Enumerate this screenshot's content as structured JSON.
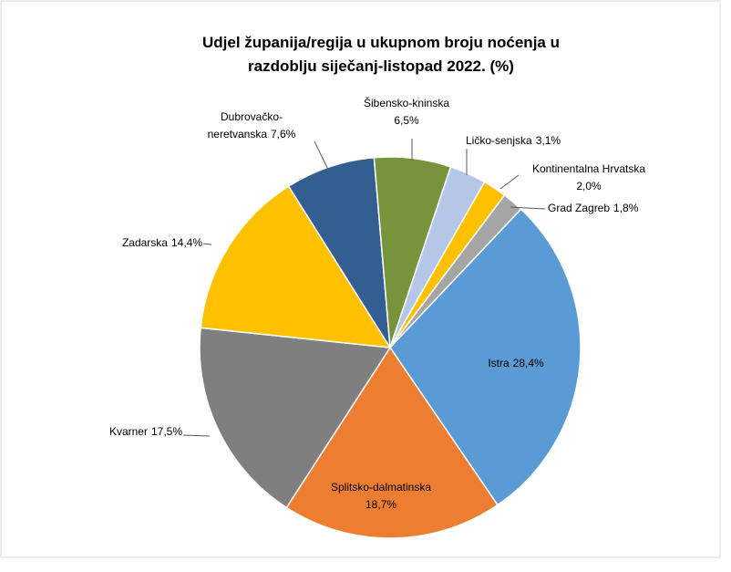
{
  "chart_data": {
    "type": "pie",
    "title": "Udjel županija/regija u ukupnom broju noćenja u razdoblju siječanj-listopad 2022. (%)",
    "categories": [
      "Istra",
      "Splitsko-dalmatinska",
      "Kvarner",
      "Zadarska",
      "Dubrovačko-neretvanska",
      "Šibensko-kninska",
      "Ličko-senjska",
      "Kontinentalna Hrvatska",
      "Grad Zagreb"
    ],
    "values": [
      28.4,
      18.7,
      17.5,
      14.4,
      7.6,
      6.5,
      3.1,
      2.0,
      1.8
    ],
    "value_labels": [
      "28,4%",
      "18,7%",
      "17,5%",
      "14,4%",
      "7,6%",
      "6,5%",
      "3,1%",
      "2,0%",
      "1,8%"
    ],
    "colors": [
      "#5b9bd5",
      "#ed7d31",
      "#7f7f7f",
      "#ffc000",
      "#335e91",
      "#77933c",
      "#b4c7e7",
      "#ffc000",
      "#a5a5a5"
    ]
  }
}
